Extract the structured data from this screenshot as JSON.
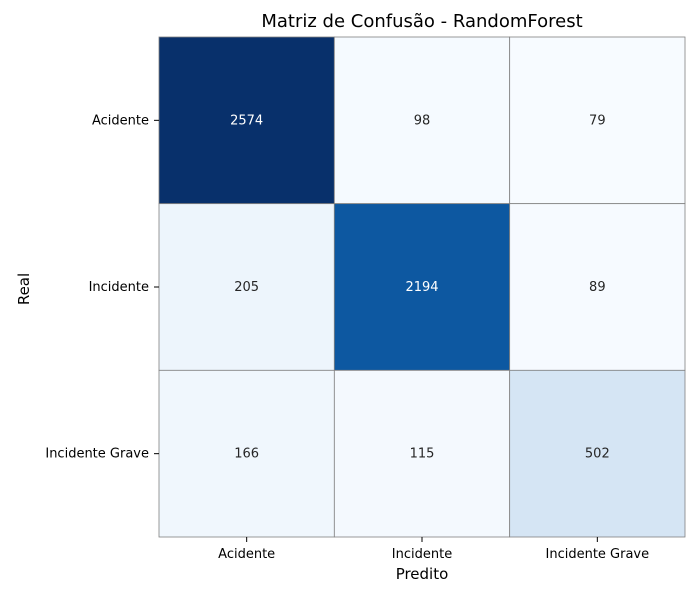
{
  "chart_data": {
    "type": "heatmap",
    "title": "Matriz de Confusão - RandomForest",
    "xlabel": "Predito",
    "ylabel": "Real",
    "x_categories": [
      "Acidente",
      "Incidente",
      "Incidente Grave"
    ],
    "y_categories": [
      "Acidente",
      "Incidente",
      "Incidente Grave"
    ],
    "values": [
      [
        2574,
        98,
        79
      ],
      [
        205,
        2194,
        89
      ],
      [
        166,
        115,
        502
      ]
    ],
    "colormap": "Blues",
    "colorbar": false,
    "grid_color": "#808080"
  }
}
